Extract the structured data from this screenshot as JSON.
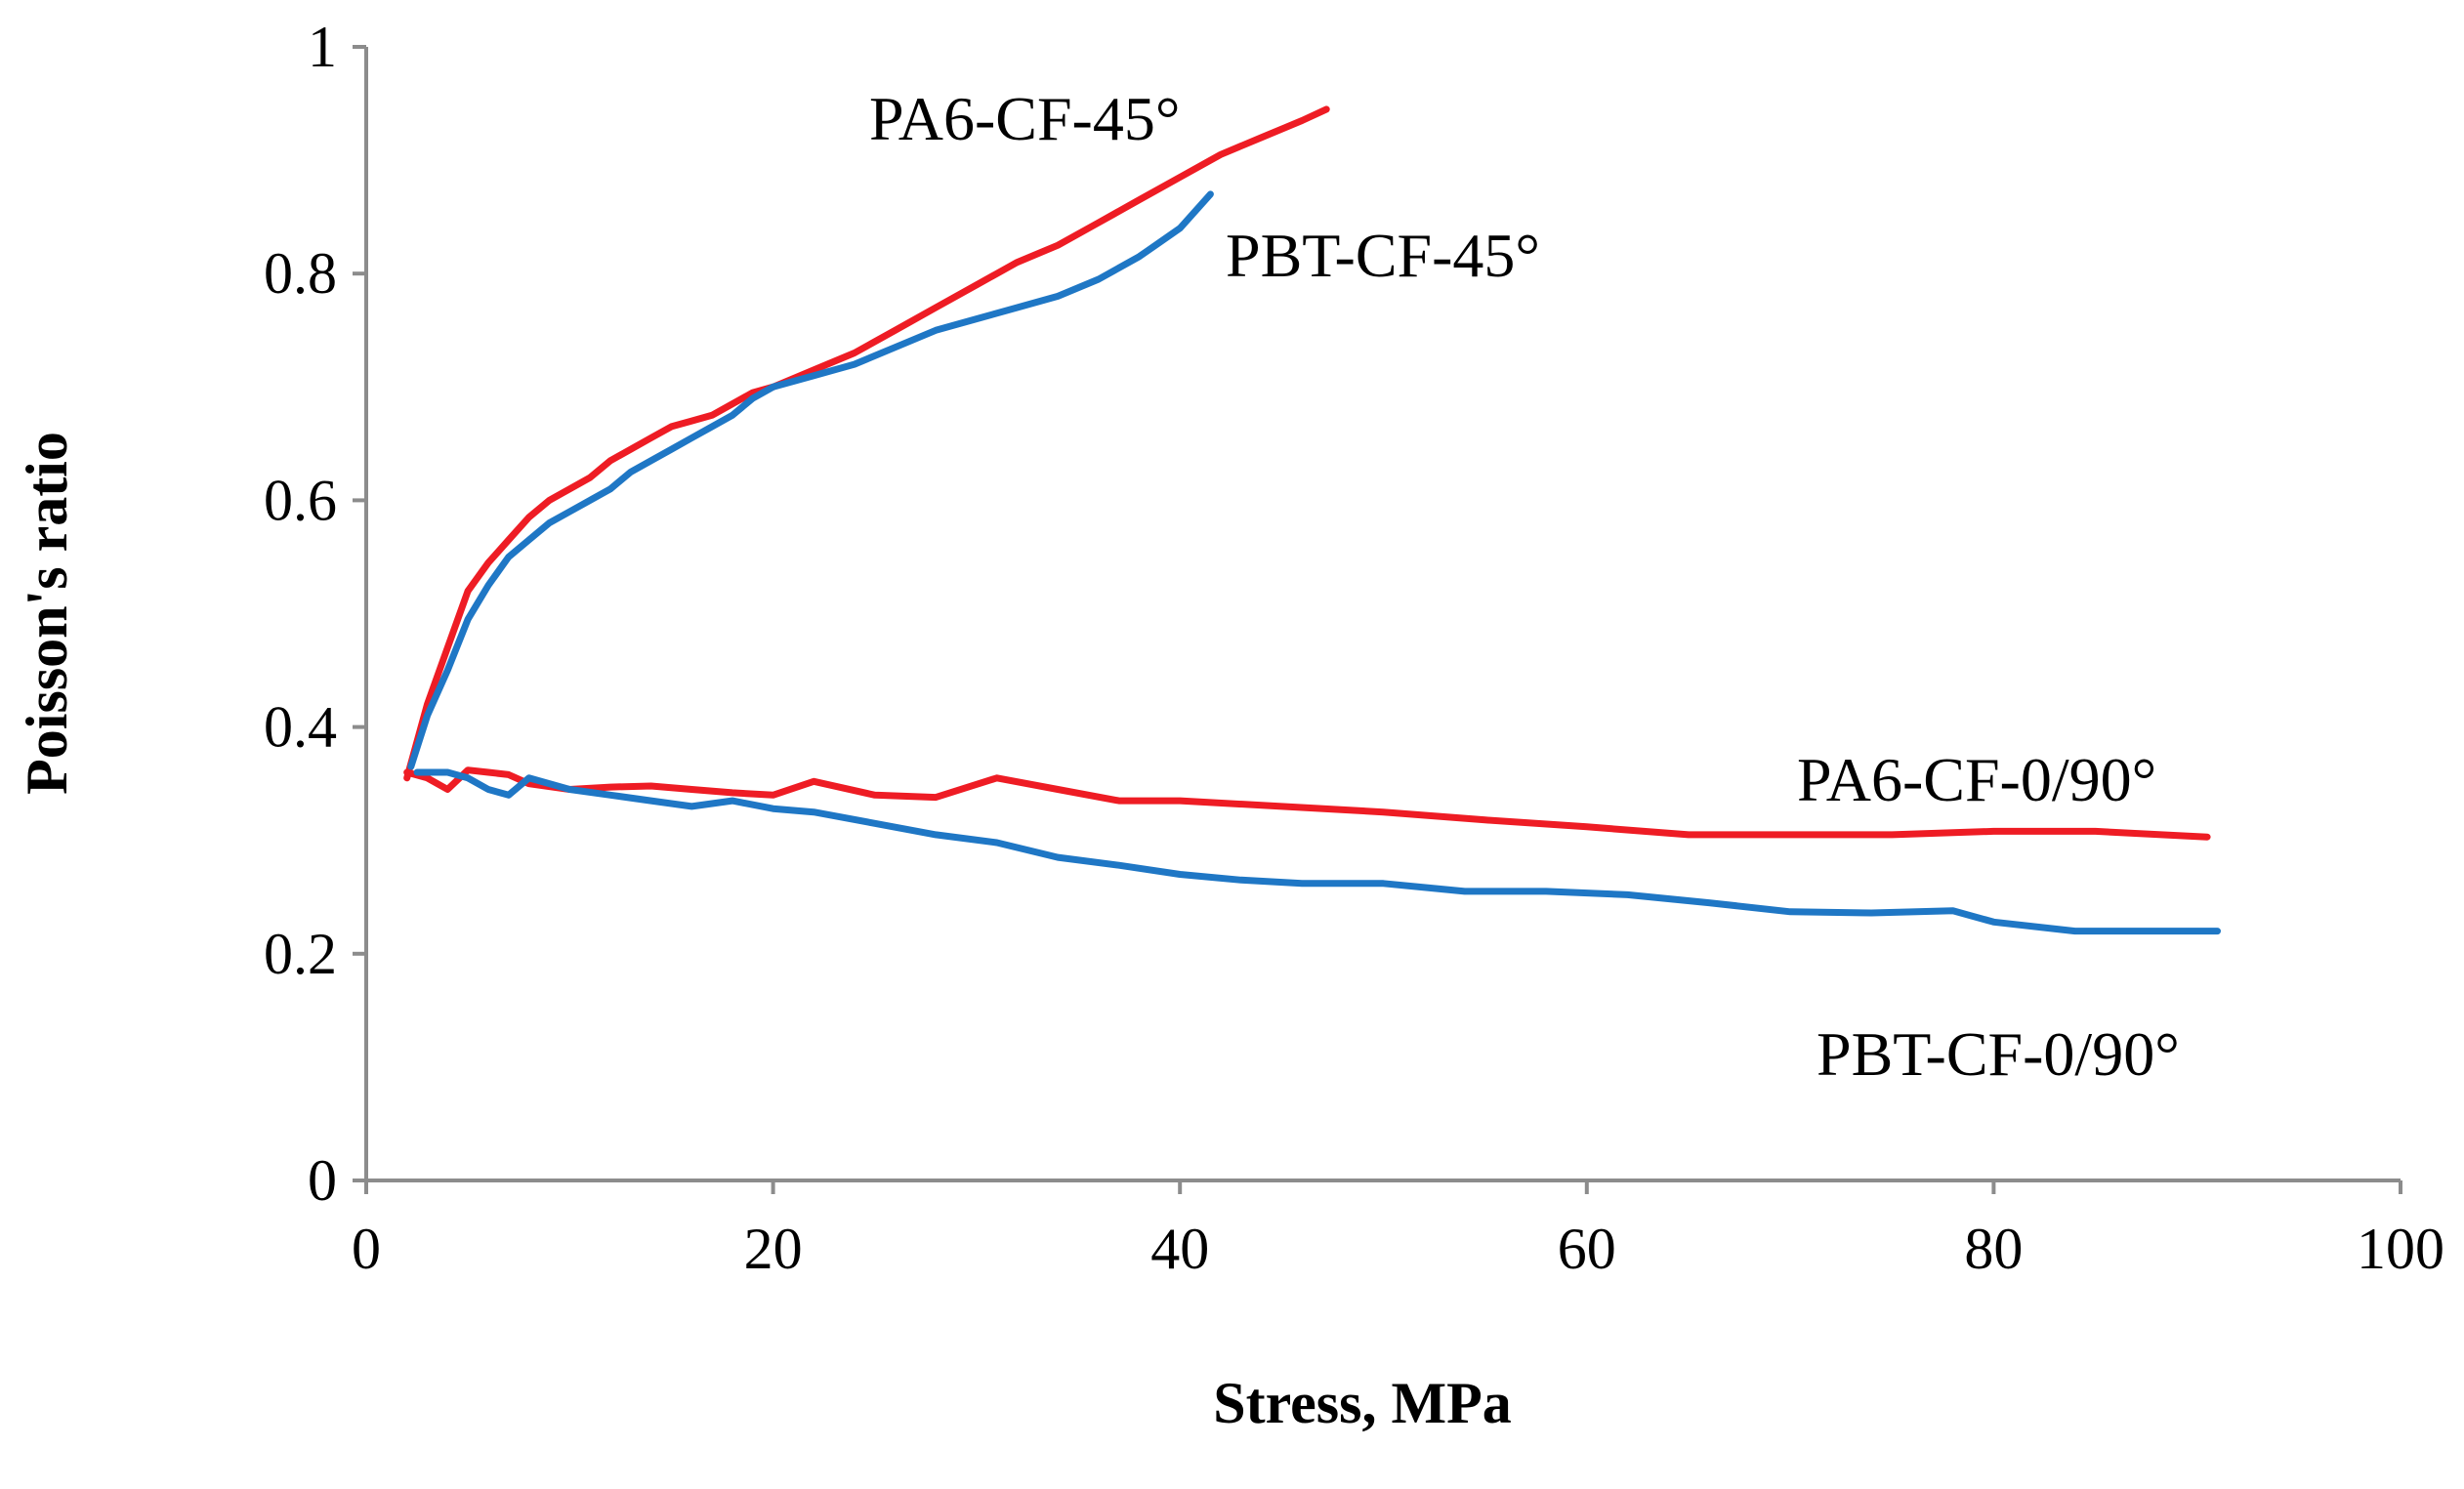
{
  "chart_data": {
    "type": "line",
    "title": "",
    "xlabel": "Stress, MPa",
    "ylabel": "Poisson's ratio",
    "xlim": [
      0,
      100
    ],
    "ylim": [
      0,
      1
    ],
    "xticks": [
      0,
      20,
      40,
      60,
      80,
      100
    ],
    "yticks": [
      0,
      0.2,
      0.4,
      0.6,
      0.8,
      1
    ],
    "ytick_labels": [
      "0",
      "0.2",
      "0.4",
      "0.6",
      "0.8",
      "1"
    ],
    "grid": false,
    "legend": "inline labels next to curves",
    "series": [
      {
        "name": "PA6-CF-45°",
        "color": "#ee1c24",
        "x": [
          2,
          3,
          4,
          5,
          6,
          7,
          8,
          9,
          10,
          11,
          12,
          13,
          14,
          15,
          16,
          17,
          18,
          19,
          20,
          22,
          24,
          26,
          28,
          30,
          32,
          34,
          36,
          38,
          40,
          42,
          44,
          46,
          47.2
        ],
        "y": [
          0.355,
          0.42,
          0.47,
          0.52,
          0.545,
          0.565,
          0.585,
          0.6,
          0.61,
          0.62,
          0.635,
          0.645,
          0.655,
          0.665,
          0.67,
          0.675,
          0.685,
          0.695,
          0.7,
          0.715,
          0.73,
          0.75,
          0.77,
          0.79,
          0.81,
          0.825,
          0.845,
          0.865,
          0.885,
          0.905,
          0.92,
          0.935,
          0.945
        ]
      },
      {
        "name": "PBT-CF-45°",
        "color": "#1f77c5",
        "x": [
          2.2,
          3,
          4,
          5,
          6,
          7,
          8,
          9,
          10,
          11,
          12,
          13,
          14,
          15,
          16,
          17,
          18,
          19,
          20,
          22,
          24,
          26,
          28,
          30,
          32,
          34,
          36,
          38,
          40,
          41.5
        ],
        "y": [
          0.365,
          0.41,
          0.45,
          0.495,
          0.525,
          0.55,
          0.565,
          0.58,
          0.59,
          0.6,
          0.61,
          0.625,
          0.635,
          0.645,
          0.655,
          0.665,
          0.675,
          0.69,
          0.7,
          0.71,
          0.72,
          0.735,
          0.75,
          0.76,
          0.77,
          0.78,
          0.795,
          0.815,
          0.84,
          0.87
        ]
      },
      {
        "name": "PA6-CF-0/90°",
        "color": "#ee1c24",
        "x": [
          2,
          3,
          4,
          5,
          6,
          7,
          8,
          10,
          12,
          14,
          16,
          18,
          20,
          22,
          25,
          28,
          31,
          34,
          37,
          40,
          45,
          50,
          55,
          60,
          65,
          70,
          75,
          80,
          85,
          90.5
        ],
        "y": [
          0.36,
          0.355,
          0.345,
          0.362,
          0.36,
          0.358,
          0.35,
          0.345,
          0.347,
          0.348,
          0.345,
          0.342,
          0.34,
          0.352,
          0.34,
          0.338,
          0.355,
          0.345,
          0.335,
          0.335,
          0.33,
          0.325,
          0.318,
          0.312,
          0.305,
          0.305,
          0.305,
          0.308,
          0.308,
          0.303
        ]
      },
      {
        "name": "PBT-CF-0/90°",
        "color": "#1f77c5",
        "x": [
          2.5,
          4,
          5,
          6,
          7,
          8,
          10,
          12,
          14,
          16,
          18,
          20,
          22,
          25,
          28,
          31,
          34,
          37,
          40,
          43,
          46,
          50,
          54,
          58,
          62,
          66,
          70,
          74,
          78,
          80,
          84,
          88,
          91
        ],
        "y": [
          0.36,
          0.36,
          0.355,
          0.345,
          0.34,
          0.355,
          0.345,
          0.34,
          0.335,
          0.33,
          0.335,
          0.328,
          0.325,
          0.315,
          0.305,
          0.298,
          0.285,
          0.278,
          0.27,
          0.265,
          0.262,
          0.262,
          0.255,
          0.255,
          0.252,
          0.245,
          0.237,
          0.236,
          0.238,
          0.228,
          0.22,
          0.22,
          0.22
        ]
      }
    ],
    "annotations": [
      {
        "text": "PA6-CF-45°"
      },
      {
        "text": "PBT-CF-45°"
      },
      {
        "text": "PA6-CF-0/90°"
      },
      {
        "text": "PBT-CF-0/90°"
      }
    ]
  }
}
